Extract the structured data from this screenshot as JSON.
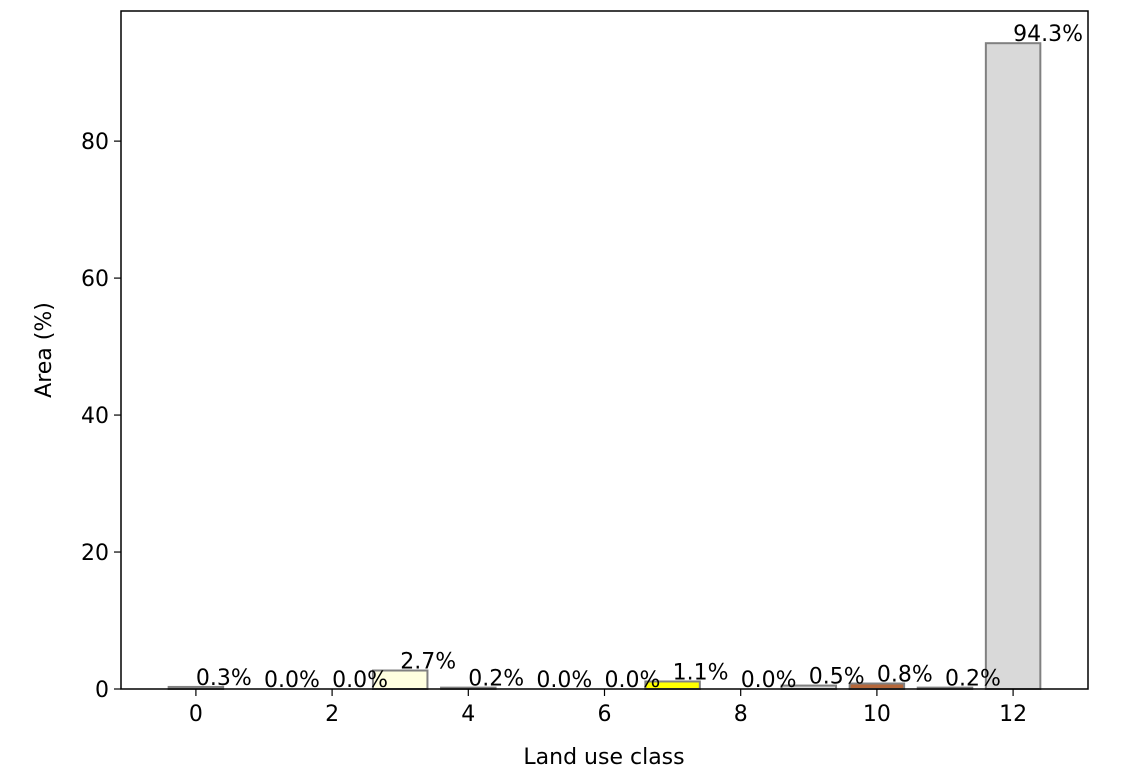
{
  "chart_data": {
    "type": "bar",
    "title": "",
    "xlabel": "Land use class",
    "ylabel": "Area (%)",
    "x": [
      0,
      1,
      2,
      3,
      4,
      5,
      6,
      7,
      8,
      9,
      10,
      11,
      12
    ],
    "values": [
      0.3,
      0.0,
      0.0,
      2.7,
      0.2,
      0.0,
      0.0,
      1.1,
      0.0,
      0.5,
      0.8,
      0.2,
      94.3
    ],
    "data_labels": [
      "0.3%",
      "0.0%",
      "0.0%",
      "2.7%",
      "0.2%",
      "0.0%",
      "0.0%",
      "1.1%",
      "0.0%",
      "0.5%",
      "0.8%",
      "0.2%",
      "94.3%"
    ],
    "bar_colors": [
      "#d9d9d9",
      "#ffffff",
      "#ffffff",
      "#ffffe0",
      "#d9d9d9",
      "#ffffff",
      "#ffffff",
      "#ffff00",
      "#ffffff",
      "#d9d9d9",
      "#b5673a",
      "#d9d9d9",
      "#d9d9d9"
    ],
    "bar_edge_color": "#808080",
    "xlim": [
      -1.1,
      13.1
    ],
    "ylim": [
      0,
      99
    ],
    "xticks": [
      0,
      2,
      4,
      6,
      8,
      10,
      12
    ],
    "xtick_labels": [
      "0",
      "2",
      "4",
      "6",
      "8",
      "10",
      "12"
    ],
    "yticks": [
      0,
      20,
      40,
      60,
      80
    ],
    "ytick_labels": [
      "0",
      "20",
      "40",
      "60",
      "80"
    ],
    "grid": false,
    "legend": "none"
  }
}
